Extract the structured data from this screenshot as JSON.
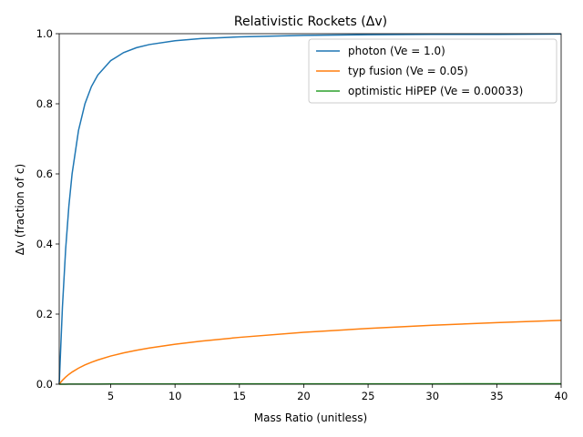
{
  "chart_data": {
    "type": "line",
    "title": "Relativistic Rockets (Δv)",
    "xlabel": "Mass Ratio (unitless)",
    "ylabel": "Δv (fraction of c)",
    "xlim": [
      1,
      40
    ],
    "ylim": [
      0,
      1.0
    ],
    "xticks": [
      5,
      10,
      15,
      20,
      25,
      30,
      35,
      40
    ],
    "xtick_labels": [
      "5",
      "10",
      "15",
      "20",
      "25",
      "30",
      "35",
      "40"
    ],
    "yticks": [
      0,
      0.2,
      0.4,
      0.6,
      0.8,
      1.0
    ],
    "ytick_labels": [
      "0.0",
      "0.2",
      "0.4",
      "0.6",
      "0.8",
      "1.0"
    ],
    "grid": false,
    "legend_position": "top-right",
    "x": [
      1,
      1.25,
      1.5,
      1.75,
      2,
      2.5,
      3,
      3.5,
      4,
      5,
      6,
      7,
      8,
      10,
      12,
      15,
      20,
      25,
      30,
      35,
      40
    ],
    "series": [
      {
        "name": "photon (Ve = 1.0)",
        "color": "#1f77b4",
        "values": [
          0,
          0.22,
          0.385,
          0.508,
          0.6,
          0.724,
          0.8,
          0.849,
          0.882,
          0.923,
          0.946,
          0.96,
          0.969,
          0.98,
          0.986,
          0.991,
          0.995,
          0.997,
          0.998,
          0.998,
          0.999
        ]
      },
      {
        "name": "typ fusion (Ve = 0.05)",
        "color": "#ff7f0e",
        "values": [
          0,
          0.0112,
          0.0203,
          0.028,
          0.0346,
          0.0458,
          0.0549,
          0.0626,
          0.0692,
          0.0803,
          0.0892,
          0.0967,
          0.1032,
          0.114,
          0.1228,
          0.1336,
          0.1479,
          0.1591,
          0.1681,
          0.1757,
          0.1822
        ]
      },
      {
        "name": "optimistic HiPEP (Ve = 0.00033)",
        "color": "#2ca02c",
        "values": [
          0,
          7e-05,
          0.00013,
          0.00018,
          0.00023,
          0.0003,
          0.00036,
          0.00041,
          0.00046,
          0.00053,
          0.00059,
          0.00064,
          0.00069,
          0.00076,
          0.00082,
          0.00089,
          0.00099,
          0.00106,
          0.00112,
          0.00117,
          0.00122
        ]
      }
    ]
  }
}
